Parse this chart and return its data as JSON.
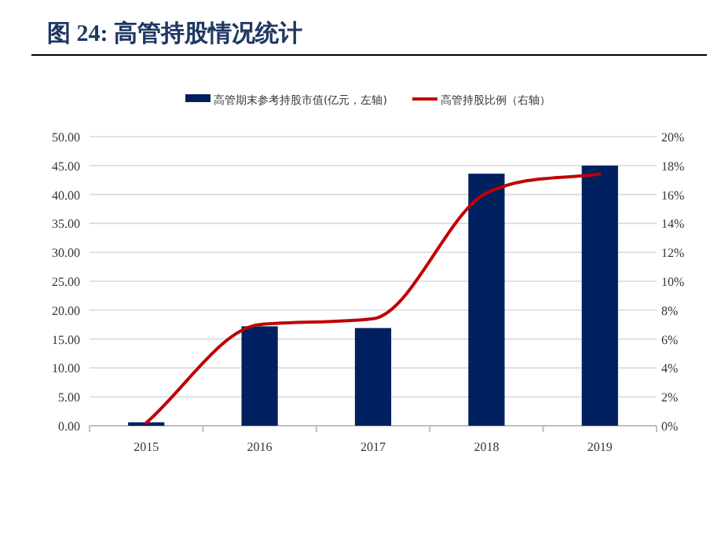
{
  "chart_data": {
    "type": "bar",
    "title": "图 24:  高管持股情况统计",
    "categories": [
      "2015",
      "2016",
      "2017",
      "2018",
      "2019"
    ],
    "series": [
      {
        "name": "高管期末参考持股市值(亿元，左轴)",
        "color": "#002060",
        "values": [
          0.6,
          17.2,
          16.9,
          43.6,
          45.0
        ]
      },
      {
        "name": "高管持股比例（右轴）",
        "type": "line",
        "axis": "y2",
        "color": "#c00000",
        "values": [
          0.2,
          7.0,
          7.4,
          16.1,
          17.4
        ]
      }
    ],
    "ylim": [
      0,
      50
    ],
    "yticks": [
      {
        "value": 0,
        "label": "0.00"
      },
      {
        "value": 5,
        "label": "5.00"
      },
      {
        "value": 10,
        "label": "10.00"
      },
      {
        "value": 15,
        "label": "15.00"
      },
      {
        "value": 20,
        "label": "20.00"
      },
      {
        "value": 25,
        "label": "25.00"
      },
      {
        "value": 30,
        "label": "30.00"
      },
      {
        "value": 35,
        "label": "35.00"
      },
      {
        "value": 40,
        "label": "40.00"
      },
      {
        "value": 45,
        "label": "45.00"
      },
      {
        "value": 50,
        "label": "50.00"
      }
    ],
    "y2lim": [
      0,
      20
    ],
    "y2ticks": [
      {
        "value": 0,
        "label": "0%"
      },
      {
        "value": 2,
        "label": "2%"
      },
      {
        "value": 4,
        "label": "4%"
      },
      {
        "value": 6,
        "label": "6%"
      },
      {
        "value": 8,
        "label": "8%"
      },
      {
        "value": 10,
        "label": "10%"
      },
      {
        "value": 12,
        "label": "12%"
      },
      {
        "value": 14,
        "label": "14%"
      },
      {
        "value": 16,
        "label": "16%"
      },
      {
        "value": 18,
        "label": "18%"
      },
      {
        "value": 20,
        "label": "20%"
      }
    ],
    "grid": "y",
    "legend": "top",
    "marker": "none",
    "line_style": "solid"
  }
}
